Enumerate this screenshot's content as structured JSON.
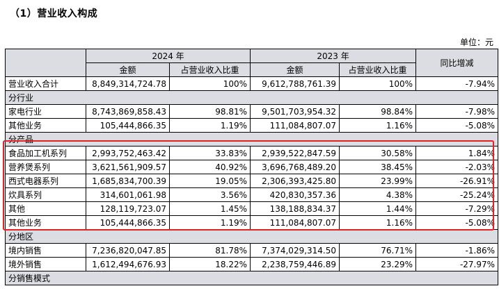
{
  "heading": "（1）营业收入构成",
  "unit": "单位：元",
  "header": {
    "year_2024": "2024 年",
    "year_2023": "2023 年",
    "yoy": "同比增减",
    "amount": "金额",
    "share": "占营业收入比重"
  },
  "total": {
    "label": "营业收入合计",
    "a2024": "8,849,314,724.78",
    "p2024": "100%",
    "a2023": "9,612,788,761.39",
    "p2023": "100%",
    "yoy": "-7.94%"
  },
  "sections": [
    {
      "title": "分行业",
      "rows": [
        {
          "label": "家电行业",
          "a2024": "8,743,869,858.43",
          "p2024": "98.81%",
          "a2023": "9,501,703,954.32",
          "p2023": "98.84%",
          "yoy": "-7.98%"
        },
        {
          "label": "其他业务",
          "a2024": "105,444,866.35",
          "p2024": "1.19%",
          "a2023": "111,084,807.07",
          "p2023": "1.16%",
          "yoy": "-5.08%"
        }
      ]
    },
    {
      "title": "分产品",
      "rows": [
        {
          "label": "食品加工机系列",
          "a2024": "2,993,752,463.42",
          "p2024": "33.83%",
          "a2023": "2,939,522,847.59",
          "p2023": "30.58%",
          "yoy": "1.84%"
        },
        {
          "label": "营养煲系列",
          "a2024": "3,621,561,909.57",
          "p2024": "40.92%",
          "a2023": "3,696,768,489.20",
          "p2023": "38.45%",
          "yoy": "-2.03%"
        },
        {
          "label": "西式电器系列",
          "a2024": "1,685,834,700.39",
          "p2024": "19.05%",
          "a2023": "2,306,393,425.80",
          "p2023": "23.99%",
          "yoy": "-26.91%"
        },
        {
          "label": "炊具系列",
          "a2024": "314,601,061.98",
          "p2024": "3.56%",
          "a2023": "420,830,357.36",
          "p2023": "4.38%",
          "yoy": "-25.24%"
        },
        {
          "label": "其他",
          "a2024": "128,119,723.07",
          "p2024": "1.45%",
          "a2023": "138,188,834.37",
          "p2023": "1.44%",
          "yoy": "-7.29%"
        },
        {
          "label": "其他业务",
          "a2024": "105,444,866.35",
          "p2024": "1.19%",
          "a2023": "111,084,807.07",
          "p2023": "1.16%",
          "yoy": "-5.08%"
        }
      ]
    },
    {
      "title": "分地区",
      "rows": [
        {
          "label": "境内销售",
          "a2024": "7,236,820,047.85",
          "p2024": "81.78%",
          "a2023": "7,374,029,314.50",
          "p2023": "76.71%",
          "yoy": "-1.86%"
        },
        {
          "label": "境外销售",
          "a2024": "1,612,494,676.93",
          "p2024": "18.22%",
          "a2023": "2,238,759,446.89",
          "p2023": "23.29%",
          "yoy": "-27.97%"
        }
      ]
    },
    {
      "title": "分销售模式",
      "rows": []
    }
  ],
  "highlight_color": "#e0202a"
}
